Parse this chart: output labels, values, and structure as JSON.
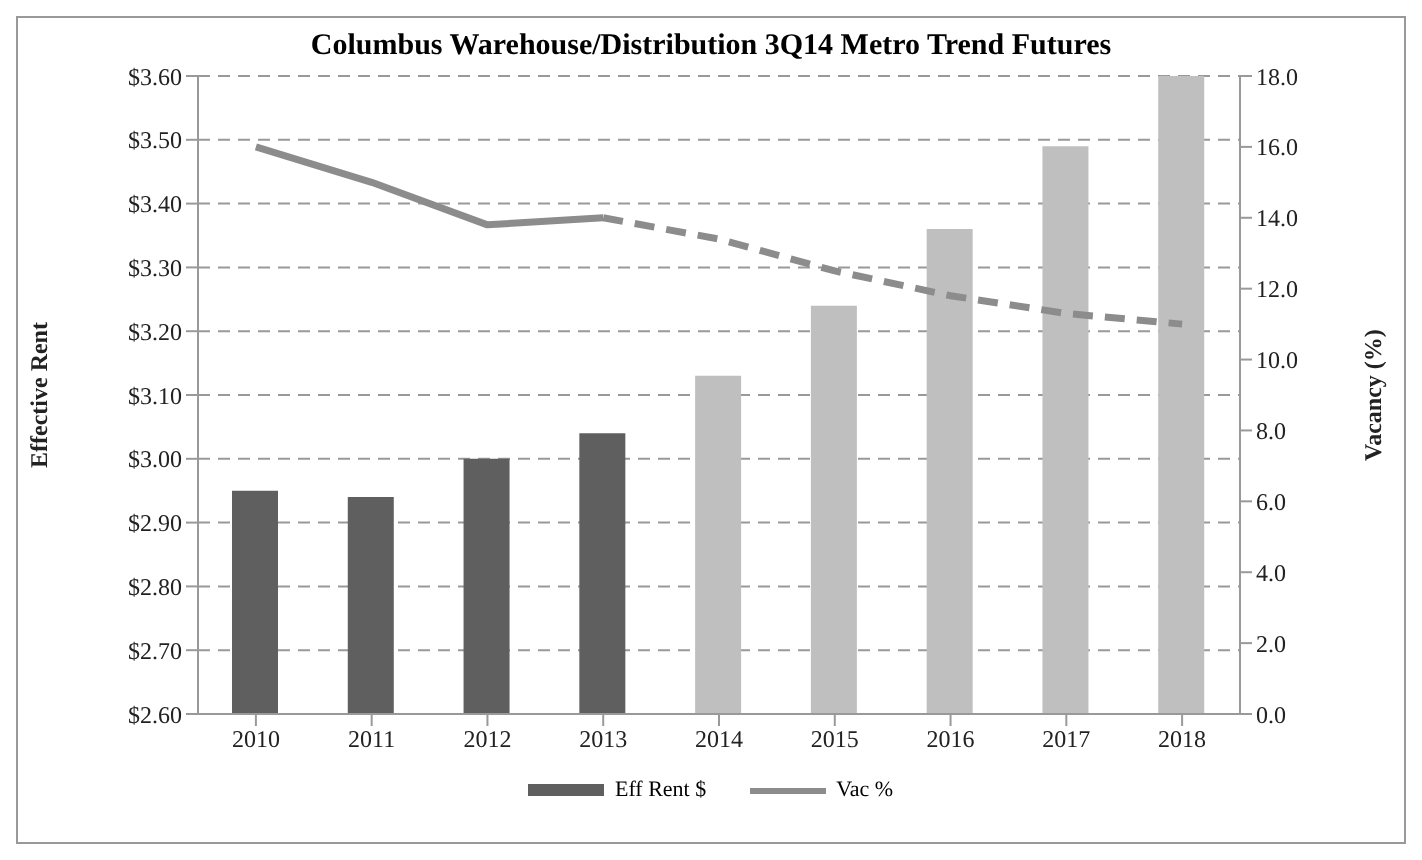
{
  "chart_data": {
    "type": "bar",
    "title": "Columbus Warehouse/Distribution 3Q14 Metro Trend Futures",
    "ylabel": "Effective Rent",
    "y2label": "Vacancy (%)",
    "categories": [
      "2010",
      "2011",
      "2012",
      "2013",
      "2014",
      "2015",
      "2016",
      "2017",
      "2018"
    ],
    "series": [
      {
        "name": "Eff Rent $",
        "color": "#5f5f5f",
        "colors": [
          "#5f5f5f",
          "#5f5f5f",
          "#5f5f5f",
          "#5f5f5f",
          "#bfbfbf",
          "#bfbfbf",
          "#bfbfbf",
          "#bfbfbf",
          "#bfbfbf"
        ],
        "values": [
          2.95,
          2.94,
          3.0,
          3.04,
          3.13,
          3.24,
          3.36,
          3.49,
          3.6
        ]
      },
      {
        "name": "Vac %",
        "type": "line",
        "axis": "y2",
        "color": "#8c8c8c",
        "line_style": "solid",
        "values": [
          16.0,
          15.0,
          13.8,
          14.0,
          null,
          null,
          null,
          null,
          null
        ]
      },
      {
        "type": "line",
        "axis": "y2",
        "color": "#8c8c8c",
        "line_style": "dashed",
        "values": [
          null,
          null,
          null,
          14.0,
          13.4,
          12.5,
          11.8,
          11.3,
          11.0
        ]
      }
    ],
    "ylim": [
      2.6,
      3.6
    ],
    "yticks": [
      {
        "value": 2.6,
        "label": "$2.60"
      },
      {
        "value": 2.7,
        "label": "$2.70"
      },
      {
        "value": 2.8,
        "label": "$2.80"
      },
      {
        "value": 2.9,
        "label": "$2.90"
      },
      {
        "value": 3.0,
        "label": "$3.00"
      },
      {
        "value": 3.1,
        "label": "$3.10"
      },
      {
        "value": 3.2,
        "label": "$3.20"
      },
      {
        "value": 3.3,
        "label": "$3.30"
      },
      {
        "value": 3.4,
        "label": "$3.40"
      },
      {
        "value": 3.5,
        "label": "$3.50"
      },
      {
        "value": 3.6,
        "label": "$3.60"
      }
    ],
    "y2lim": [
      0,
      18
    ],
    "y2ticks": [
      {
        "value": 0,
        "label": "0.0"
      },
      {
        "value": 2,
        "label": "2.0"
      },
      {
        "value": 4,
        "label": "4.0"
      },
      {
        "value": 6,
        "label": "6.0"
      },
      {
        "value": 8,
        "label": "8.0"
      },
      {
        "value": 10,
        "label": "10.0"
      },
      {
        "value": 12,
        "label": "12.0"
      },
      {
        "value": 14,
        "label": "14.0"
      },
      {
        "value": 16,
        "label": "16.0"
      },
      {
        "value": 18,
        "label": "18.0"
      }
    ],
    "grid": "y",
    "legend": "bottom",
    "marker": "none"
  }
}
